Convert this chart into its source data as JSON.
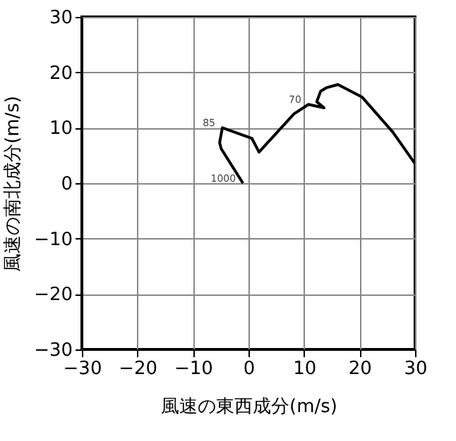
{
  "chart_data": {
    "type": "line",
    "xlabel": "風速の東西成分(m/s)",
    "ylabel": "風速の南北成分(m/s)",
    "x": [
      -1,
      -4.9,
      -5.2,
      -4.7,
      0.6,
      1.9,
      8.2,
      10.8,
      13.6,
      12.3,
      13.0,
      14.0,
      16.1,
      20.5,
      26.0,
      30.0
    ],
    "series": [
      {
        "color": "#000000",
        "values": [
          0,
          6.2,
          7.3,
          10.0,
          8.1,
          5.6,
          12.5,
          14.2,
          13.6,
          14.7,
          16.6,
          17.2,
          17.8,
          15.5,
          9.2,
          3.5
        ]
      }
    ],
    "xlim": [
      -30,
      30
    ],
    "ylim": [
      -30,
      30
    ],
    "xticks": [
      -30,
      -20,
      -10,
      0,
      10,
      20,
      30
    ],
    "yticks": [
      -30,
      -20,
      -10,
      0,
      10,
      20,
      30
    ],
    "grid": true,
    "marker": "none",
    "line_style": "solid",
    "annotations": [
      {
        "text": "1000",
        "x": -1,
        "y": 0
      },
      {
        "text": "85",
        "x": -4.7,
        "y": 10.0
      },
      {
        "text": "70",
        "x": 10.8,
        "y": 14.2
      }
    ]
  }
}
